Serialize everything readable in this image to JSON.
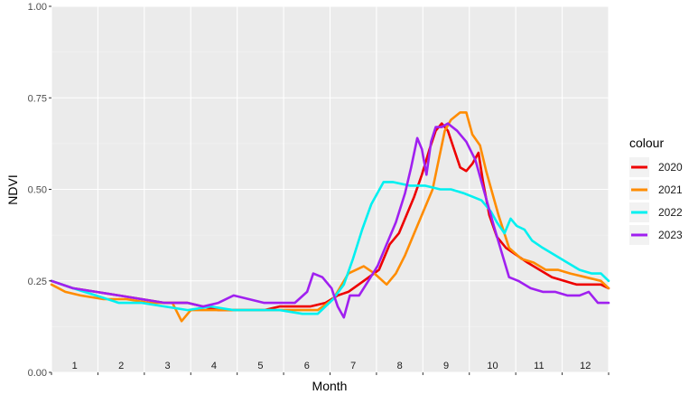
{
  "chart_data": {
    "type": "line",
    "xlabel": "Month",
    "ylabel": "NDVI",
    "ylim": [
      0,
      1
    ],
    "xlim": [
      1,
      365
    ],
    "y_ticks": [
      "0.00",
      "0.25",
      "0.50",
      "0.75",
      "1.00"
    ],
    "month_labels": [
      "1",
      "2",
      "3",
      "4",
      "5",
      "6",
      "7",
      "8",
      "9",
      "10",
      "11",
      "12"
    ],
    "grid": true,
    "legend": {
      "title": "colour",
      "position": "right"
    },
    "series": [
      {
        "name": "2020",
        "color": "#ee0000",
        "points": [
          [
            1,
            0.25
          ],
          [
            15,
            0.23
          ],
          [
            30,
            0.22
          ],
          [
            45,
            0.21
          ],
          [
            60,
            0.2
          ],
          [
            75,
            0.19
          ],
          [
            90,
            0.19
          ],
          [
            100,
            0.18
          ],
          [
            110,
            0.17
          ],
          [
            120,
            0.17
          ],
          [
            130,
            0.17
          ],
          [
            140,
            0.17
          ],
          [
            150,
            0.18
          ],
          [
            160,
            0.18
          ],
          [
            170,
            0.18
          ],
          [
            180,
            0.19
          ],
          [
            188,
            0.21
          ],
          [
            195,
            0.22
          ],
          [
            205,
            0.25
          ],
          [
            215,
            0.28
          ],
          [
            222,
            0.35
          ],
          [
            228,
            0.38
          ],
          [
            232,
            0.42
          ],
          [
            238,
            0.48
          ],
          [
            243,
            0.54
          ],
          [
            248,
            0.61
          ],
          [
            252,
            0.66
          ],
          [
            256,
            0.68
          ],
          [
            260,
            0.66
          ],
          [
            264,
            0.61
          ],
          [
            268,
            0.56
          ],
          [
            272,
            0.55
          ],
          [
            276,
            0.57
          ],
          [
            280,
            0.6
          ],
          [
            283,
            0.52
          ],
          [
            287,
            0.43
          ],
          [
            292,
            0.37
          ],
          [
            298,
            0.34
          ],
          [
            305,
            0.32
          ],
          [
            312,
            0.3
          ],
          [
            320,
            0.28
          ],
          [
            328,
            0.26
          ],
          [
            336,
            0.25
          ],
          [
            344,
            0.24
          ],
          [
            352,
            0.24
          ],
          [
            360,
            0.24
          ],
          [
            365,
            0.23
          ]
        ]
      },
      {
        "name": "2021",
        "color": "#ff8c00",
        "points": [
          [
            1,
            0.24
          ],
          [
            10,
            0.22
          ],
          [
            20,
            0.21
          ],
          [
            35,
            0.2
          ],
          [
            50,
            0.2
          ],
          [
            65,
            0.19
          ],
          [
            80,
            0.19
          ],
          [
            86,
            0.14
          ],
          [
            92,
            0.17
          ],
          [
            105,
            0.17
          ],
          [
            120,
            0.17
          ],
          [
            135,
            0.17
          ],
          [
            150,
            0.17
          ],
          [
            165,
            0.17
          ],
          [
            175,
            0.17
          ],
          [
            185,
            0.2
          ],
          [
            195,
            0.27
          ],
          [
            205,
            0.29
          ],
          [
            212,
            0.27
          ],
          [
            220,
            0.24
          ],
          [
            226,
            0.27
          ],
          [
            232,
            0.32
          ],
          [
            238,
            0.38
          ],
          [
            245,
            0.45
          ],
          [
            250,
            0.5
          ],
          [
            254,
            0.58
          ],
          [
            258,
            0.66
          ],
          [
            262,
            0.69
          ],
          [
            268,
            0.71
          ],
          [
            272,
            0.71
          ],
          [
            276,
            0.65
          ],
          [
            281,
            0.62
          ],
          [
            285,
            0.55
          ],
          [
            289,
            0.49
          ],
          [
            293,
            0.43
          ],
          [
            300,
            0.34
          ],
          [
            308,
            0.31
          ],
          [
            316,
            0.3
          ],
          [
            324,
            0.28
          ],
          [
            332,
            0.28
          ],
          [
            340,
            0.27
          ],
          [
            350,
            0.26
          ],
          [
            360,
            0.25
          ],
          [
            365,
            0.23
          ]
        ]
      },
      {
        "name": "2022",
        "color": "#00f0f0",
        "points": [
          [
            1,
            0.25
          ],
          [
            15,
            0.23
          ],
          [
            30,
            0.21
          ],
          [
            45,
            0.19
          ],
          [
            60,
            0.19
          ],
          [
            75,
            0.18
          ],
          [
            90,
            0.17
          ],
          [
            105,
            0.18
          ],
          [
            120,
            0.17
          ],
          [
            135,
            0.17
          ],
          [
            150,
            0.17
          ],
          [
            165,
            0.16
          ],
          [
            175,
            0.16
          ],
          [
            185,
            0.2
          ],
          [
            192,
            0.24
          ],
          [
            198,
            0.31
          ],
          [
            204,
            0.39
          ],
          [
            210,
            0.46
          ],
          [
            214,
            0.49
          ],
          [
            218,
            0.52
          ],
          [
            224,
            0.52
          ],
          [
            235,
            0.51
          ],
          [
            245,
            0.51
          ],
          [
            255,
            0.5
          ],
          [
            262,
            0.5
          ],
          [
            270,
            0.49
          ],
          [
            276,
            0.48
          ],
          [
            282,
            0.47
          ],
          [
            288,
            0.44
          ],
          [
            292,
            0.41
          ],
          [
            297,
            0.38
          ],
          [
            301,
            0.42
          ],
          [
            305,
            0.4
          ],
          [
            310,
            0.39
          ],
          [
            315,
            0.36
          ],
          [
            322,
            0.34
          ],
          [
            330,
            0.32
          ],
          [
            338,
            0.3
          ],
          [
            346,
            0.28
          ],
          [
            354,
            0.27
          ],
          [
            360,
            0.27
          ],
          [
            365,
            0.25
          ]
        ]
      },
      {
        "name": "2023",
        "color": "#a020f0",
        "points": [
          [
            1,
            0.25
          ],
          [
            15,
            0.23
          ],
          [
            30,
            0.22
          ],
          [
            45,
            0.21
          ],
          [
            60,
            0.2
          ],
          [
            75,
            0.19
          ],
          [
            90,
            0.19
          ],
          [
            100,
            0.18
          ],
          [
            110,
            0.19
          ],
          [
            120,
            0.21
          ],
          [
            130,
            0.2
          ],
          [
            140,
            0.19
          ],
          [
            150,
            0.19
          ],
          [
            160,
            0.19
          ],
          [
            168,
            0.22
          ],
          [
            172,
            0.27
          ],
          [
            178,
            0.26
          ],
          [
            184,
            0.23
          ],
          [
            188,
            0.18
          ],
          [
            192,
            0.15
          ],
          [
            196,
            0.21
          ],
          [
            202,
            0.21
          ],
          [
            208,
            0.25
          ],
          [
            214,
            0.29
          ],
          [
            220,
            0.35
          ],
          [
            226,
            0.41
          ],
          [
            232,
            0.49
          ],
          [
            236,
            0.56
          ],
          [
            240,
            0.64
          ],
          [
            243,
            0.61
          ],
          [
            246,
            0.54
          ],
          [
            249,
            0.63
          ],
          [
            252,
            0.67
          ],
          [
            256,
            0.67
          ],
          [
            260,
            0.68
          ],
          [
            266,
            0.66
          ],
          [
            272,
            0.63
          ],
          [
            278,
            0.58
          ],
          [
            284,
            0.49
          ],
          [
            290,
            0.4
          ],
          [
            295,
            0.33
          ],
          [
            300,
            0.26
          ],
          [
            306,
            0.25
          ],
          [
            314,
            0.23
          ],
          [
            322,
            0.22
          ],
          [
            330,
            0.22
          ],
          [
            338,
            0.21
          ],
          [
            346,
            0.21
          ],
          [
            352,
            0.22
          ],
          [
            358,
            0.19
          ],
          [
            362,
            0.19
          ],
          [
            365,
            0.19
          ]
        ]
      }
    ]
  }
}
